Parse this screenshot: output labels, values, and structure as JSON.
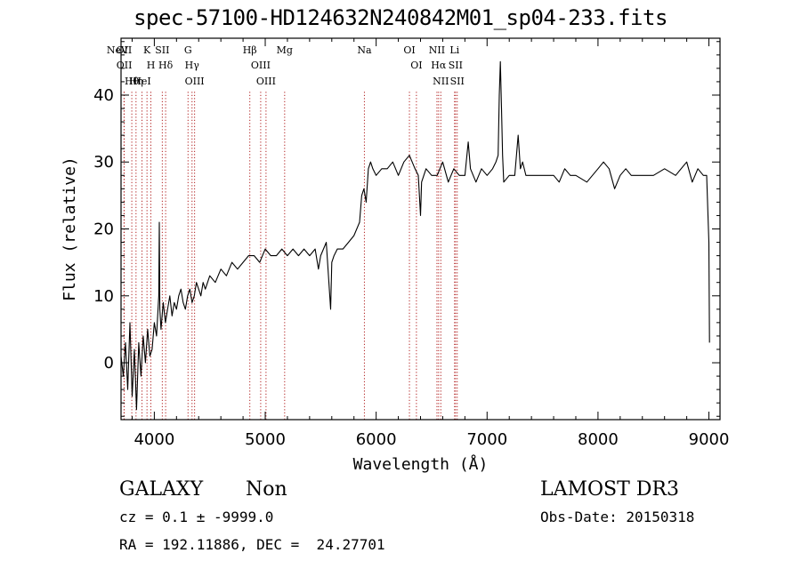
{
  "header": {
    "title": "spec-57100-HD124632N240842M01_sp04-233.fits"
  },
  "info": {
    "class": "GALAXY",
    "subclass": "Non",
    "cz_line": "cz = 0.1 ± -9999.0",
    "coords_line": "RA = 192.11886, DEC =  24.27701",
    "survey": "LAMOST DR3",
    "obs_date": "Obs-Date: 20150318"
  },
  "chart_data": {
    "type": "line",
    "title": "spec-57100-HD124632N240842M01_sp04-233.fits",
    "xlabel": "Wavelength (Å)",
    "ylabel": "Flux (relative)",
    "xlim": [
      3700,
      9100
    ],
    "ylim": [
      -8.5,
      48.5
    ],
    "xticks": [
      4000,
      5000,
      6000,
      7000,
      8000,
      9000
    ],
    "yticks": [
      0,
      10,
      20,
      30,
      40
    ],
    "line_color": "#000000",
    "marker_color": "#b22222",
    "series": [
      {
        "x": [
          3700,
          3720,
          3740,
          3760,
          3780,
          3800,
          3820,
          3840,
          3860,
          3880,
          3900,
          3920,
          3940,
          3960,
          3980,
          4000,
          4020,
          4040,
          4045,
          4050,
          4060,
          4080,
          4100,
          4120,
          4140,
          4160,
          4180,
          4200,
          4220,
          4240,
          4260,
          4280,
          4300,
          4320,
          4340,
          4360,
          4380,
          4400,
          4420,
          4440,
          4460,
          4480,
          4500,
          4550,
          4600,
          4650,
          4700,
          4750,
          4800,
          4850,
          4900,
          4950,
          5000,
          5050,
          5100,
          5150,
          5200,
          5250,
          5300,
          5350,
          5400,
          5450,
          5480,
          5500,
          5550,
          5590,
          5600,
          5620,
          5650,
          5700,
          5750,
          5800,
          5850,
          5870,
          5890,
          5910,
          5930,
          5950,
          5970,
          6000,
          6050,
          6100,
          6150,
          6200,
          6250,
          6300,
          6350,
          6380,
          6400,
          6410,
          6430,
          6450,
          6500,
          6550,
          6600,
          6650,
          6700,
          6750,
          6800,
          6830,
          6850,
          6900,
          6950,
          7000,
          7050,
          7080,
          7100,
          7110,
          7120,
          7130,
          7140,
          7150,
          7200,
          7250,
          7280,
          7300,
          7320,
          7350,
          7400,
          7500,
          7600,
          7650,
          7700,
          7750,
          7800,
          7900,
          8000,
          8050,
          8100,
          8150,
          8200,
          8250,
          8300,
          8400,
          8500,
          8600,
          8700,
          8800,
          8850,
          8900,
          8950,
          8980,
          9000,
          9005
        ],
        "y": [
          1,
          -2,
          3,
          -4,
          6,
          -5,
          2,
          -7,
          3,
          -2,
          4,
          0,
          5,
          1,
          2,
          6,
          4,
          10,
          21,
          8,
          5,
          9,
          6,
          8,
          10,
          7,
          9,
          8,
          10,
          11,
          9,
          8,
          10,
          11,
          9,
          10,
          12,
          11,
          10,
          12,
          11,
          12,
          13,
          12,
          14,
          13,
          15,
          14,
          15,
          16,
          16,
          15,
          17,
          16,
          16,
          17,
          16,
          17,
          16,
          17,
          16,
          17,
          14,
          16,
          18,
          8,
          15,
          16,
          17,
          17,
          18,
          19,
          21,
          25,
          26,
          24,
          29,
          30,
          29,
          28,
          29,
          29,
          30,
          28,
          30,
          31,
          29,
          28,
          22,
          27,
          28,
          29,
          28,
          28,
          30,
          27,
          29,
          28,
          28,
          33,
          29,
          27,
          29,
          28,
          29,
          30,
          31,
          40,
          45,
          38,
          31,
          27,
          28,
          28,
          34,
          29,
          30,
          28,
          28,
          28,
          28,
          27,
          29,
          28,
          28,
          27,
          29,
          30,
          29,
          26,
          28,
          29,
          28,
          28,
          28,
          29,
          28,
          30,
          27,
          29,
          28,
          28,
          18,
          3
        ]
      }
    ],
    "line_markers": [
      {
        "name": "NeV",
        "x": 3426
      },
      {
        "name": "OII",
        "x": 3727
      },
      {
        "name": "OII",
        "x": 3729
      },
      {
        "name": "Hθ",
        "x": 3797
      },
      {
        "name": "Hη",
        "x": 3835
      },
      {
        "name": "HeI",
        "x": 3889
      },
      {
        "name": "K",
        "x": 3934
      },
      {
        "name": "H",
        "x": 3969
      },
      {
        "name": "SII",
        "x": 4072
      },
      {
        "name": "Hδ",
        "x": 4102
      },
      {
        "name": "Hγ",
        "x": 4340
      },
      {
        "name": "G",
        "x": 4304
      },
      {
        "name": "OIII",
        "x": 4363
      },
      {
        "name": "Hβ",
        "x": 4861
      },
      {
        "name": "OIII",
        "x": 4959
      },
      {
        "name": "OIII",
        "x": 5007
      },
      {
        "name": "Mg",
        "x": 5175
      },
      {
        "name": "Na",
        "x": 5894
      },
      {
        "name": "OI",
        "x": 6300
      },
      {
        "name": "OI",
        "x": 6363
      },
      {
        "name": "NII",
        "x": 6548
      },
      {
        "name": "Hα",
        "x": 6563
      },
      {
        "name": "NII",
        "x": 6583
      },
      {
        "name": "Li",
        "x": 6707
      },
      {
        "name": "SII",
        "x": 6716
      },
      {
        "name": "SII",
        "x": 6731
      }
    ]
  }
}
